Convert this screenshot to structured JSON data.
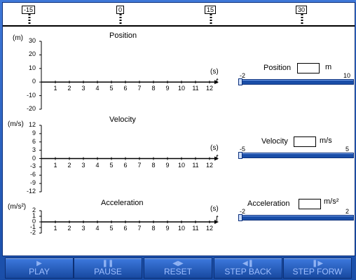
{
  "track": {
    "markers": [
      "-15",
      "0",
      "15",
      "30"
    ]
  },
  "plots": [
    {
      "title": "Position",
      "unit": "(m)",
      "y_ticks": [
        "30",
        "20",
        "10",
        "0",
        "-10",
        "-20"
      ],
      "time_unit": "(s)",
      "time_var": "t",
      "x_ticks": [
        "1",
        "2",
        "3",
        "4",
        "5",
        "6",
        "7",
        "8",
        "9",
        "10",
        "11",
        "12"
      ]
    },
    {
      "title": "Velocity",
      "unit": "(m/s)",
      "y_ticks": [
        "12",
        "9",
        "6",
        "3",
        "0",
        "-3",
        "-6",
        "-9",
        "-12"
      ],
      "time_unit": "(s)",
      "time_var": "t",
      "x_ticks": [
        "1",
        "2",
        "3",
        "4",
        "5",
        "6",
        "7",
        "8",
        "9",
        "10",
        "11",
        "12"
      ]
    },
    {
      "title": "Acceleration",
      "unit": "(m/s²)",
      "y_ticks": [
        "2",
        "1",
        "0",
        "-1",
        "-2"
      ],
      "time_unit": "(s)",
      "time_var": "t",
      "x_ticks": [
        "1",
        "2",
        "3",
        "4",
        "5",
        "6",
        "7",
        "8",
        "9",
        "10",
        "11",
        "12"
      ]
    }
  ],
  "controls": [
    {
      "label": "Position",
      "value": "",
      "unit": "m",
      "min": "-2",
      "max": "10"
    },
    {
      "label": "Velocity",
      "value": "",
      "unit": "m/s",
      "min": "-5",
      "max": "5"
    },
    {
      "label": "Acceleration",
      "value": "",
      "unit": "m/s²",
      "min": "-2",
      "max": "2"
    }
  ],
  "toolbar": {
    "play": "PLAY",
    "pause": "PAUSE",
    "reset": "RESET",
    "step_back": "STEP BACK",
    "step_forward": "STEP FORW",
    "play_icon": "play-icon",
    "pause_icon": "pause-icon",
    "reset_icon": "reset-icon",
    "step_back_icon": "step-back-icon",
    "step_forward_icon": "step-forward-icon"
  }
}
